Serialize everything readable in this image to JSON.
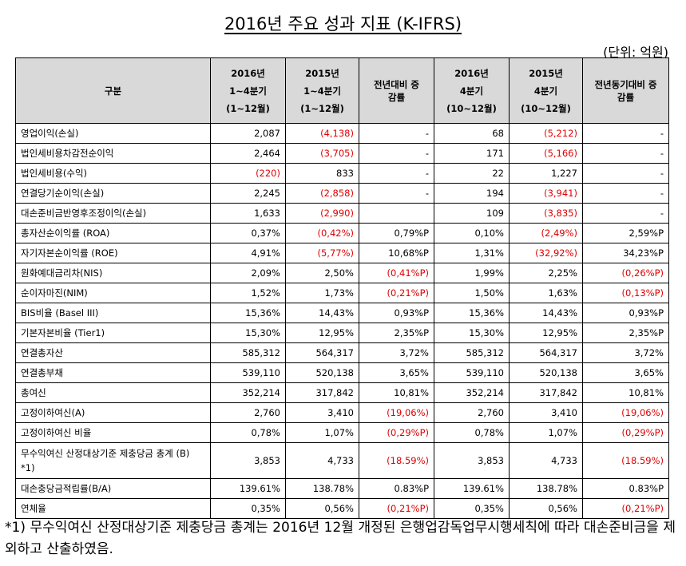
{
  "title": "2016년 주요 성과 지표 (K-IFRS)",
  "unit": "(단위: 억원)",
  "header": {
    "category": "구분",
    "col1_line1": "2016년",
    "col1_line2": "1~4분기",
    "col1_line3": "(1~12월)",
    "col2_line1": "2015년",
    "col2_line2": "1~4분기",
    "col2_line3": "(1~12월)",
    "col3_line1": "전년대비 증",
    "col3_line2": "감률",
    "col4_line1": "2016년",
    "col4_line2": "4분기",
    "col4_line3": "(10~12월)",
    "col5_line1": "2015년",
    "col5_line2": "4분기",
    "col5_line3": "(10~12월)",
    "col6_line1": "전년동기대비 증",
    "col6_line2": "감률"
  },
  "rows": [
    {
      "label": "영업이익(손실)",
      "c1": "2,087",
      "c2": "(4,138)",
      "c3": "-",
      "c4": "68",
      "c5": "(5,212)",
      "c6": "-"
    },
    {
      "label": "법인세비용차감전순이익",
      "c1": "2,464",
      "c2": "(3,705)",
      "c3": "-",
      "c4": "171",
      "c5": "(5,166)",
      "c6": "-"
    },
    {
      "label": "법인세비용(수익)",
      "c1": "(220)",
      "c2": "833",
      "c3": "-",
      "c4": "22",
      "c5": "1,227",
      "c6": "-"
    },
    {
      "label": "연결당기순이익(손실)",
      "c1": "2,245",
      "c2": "(2,858)",
      "c3": "-",
      "c4": "194",
      "c5": "(3,941)",
      "c6": "-"
    },
    {
      "label": "대손준비금반영후조정이익(손실)",
      "c1": "1,633",
      "c2": "(2,990)",
      "c3": "",
      "c4": "109",
      "c5": "(3,835)",
      "c6": "-"
    },
    {
      "label": "총자산순이익률 (ROA)",
      "c1": "0,37%",
      "c2": "(0,42%)",
      "c3": "0,79%P",
      "c4": "0,10%",
      "c5": "(2,49%)",
      "c6": "2,59%P"
    },
    {
      "label": "자기자본순이익률 (ROE)",
      "c1": "4,91%",
      "c2": "(5,77%)",
      "c3": "10,68%P",
      "c4": "1,31%",
      "c5": "(32,92%)",
      "c6": "34,23%P"
    },
    {
      "label": "원화예대금리차(NIS)",
      "c1": "2,09%",
      "c2": "2,50%",
      "c3": "(0,41%P)",
      "c4": "1,99%",
      "c5": "2,25%",
      "c6": "(0,26%P)"
    },
    {
      "label": "순이자마진(NIM)",
      "c1": "1,52%",
      "c2": "1,73%",
      "c3": "(0,21%P)",
      "c4": "1,50%",
      "c5": "1,63%",
      "c6": "(0,13%P)"
    },
    {
      "label": "BIS비율 (Basel III)",
      "c1": "15,36%",
      "c2": "14,43%",
      "c3": "0,93%P",
      "c4": "15,36%",
      "c5": "14,43%",
      "c6": "0,93%P"
    },
    {
      "label": "기본자본비율 (Tier1)",
      "c1": "15,30%",
      "c2": "12,95%",
      "c3": "2,35%P",
      "c4": "15,30%",
      "c5": "12,95%",
      "c6": "2,35%P"
    },
    {
      "label": "연결총자산",
      "c1": "585,312",
      "c2": "564,317",
      "c3": "3,72%",
      "c4": "585,312",
      "c5": "564,317",
      "c6": "3,72%"
    },
    {
      "label": "연결총부채",
      "c1": "539,110",
      "c2": "520,138",
      "c3": "3,65%",
      "c4": "539,110",
      "c5": "520,138",
      "c6": "3,65%"
    },
    {
      "label": "총여신",
      "c1": "352,214",
      "c2": "317,842",
      "c3": "10,81%",
      "c4": "352,214",
      "c5": "317,842",
      "c6": "10,81%"
    },
    {
      "label": "고정이하여신(A)",
      "c1": "2,760",
      "c2": "3,410",
      "c3": "(19,06%)",
      "c4": "2,760",
      "c5": "3,410",
      "c6": "(19,06%)"
    },
    {
      "label": "고정이하여신 비율",
      "c1": "0,78%",
      "c2": "1,07%",
      "c3": "(0,29%P)",
      "c4": "0,78%",
      "c5": "1,07%",
      "c6": "(0,29%P)"
    },
    {
      "label": "무수익여신 산정대상기준 제충당금 총계 (B) *1)",
      "c1": "3,853",
      "c2": "4,733",
      "c3": "(18.59%)",
      "c4": "3,853",
      "c5": "4,733",
      "c6": "(18.59%)"
    },
    {
      "label": "대손충당금적립률(B/A)",
      "c1": "139.61%",
      "c2": "138.78%",
      "c3": "0.83%P",
      "c4": "139.61%",
      "c5": "138.78%",
      "c6": "0.83%P"
    },
    {
      "label": "연체율",
      "c1": "0,35%",
      "c2": "0,56%",
      "c3": "(0,21%P)",
      "c4": "0,35%",
      "c5": "0,56%",
      "c6": "(0,21%P)"
    }
  ],
  "footnote": "*1) 무수익여신 산정대상기준 제충당금 총계는 2016년 12월 개정된 은행업감독업무시행세칙에 따라 대손준비금을 제외하고 산출하였음.",
  "colors": {
    "negative": "#e00000",
    "header_bg": "#d9d9d9"
  }
}
